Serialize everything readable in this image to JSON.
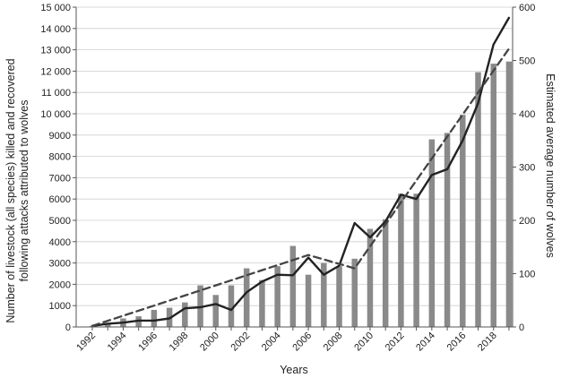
{
  "chart_data": {
    "type": "bar+line",
    "title": "",
    "xlabel": "Years",
    "ylabel_left": "Number of livestock (all species) killed and recovered following attacks attributed to wolves",
    "ylabel_left_lines": [
      "Number of livestock (all species) killed and recovered",
      "following attacks attributed to wolves"
    ],
    "ylabel_right": "Estimated average number of wolves",
    "ylim_left": [
      0,
      15000
    ],
    "ylim_right": [
      0,
      600
    ],
    "x_range": [
      1992,
      2019
    ],
    "yticks_left": [
      0,
      1000,
      2000,
      3000,
      4000,
      5000,
      6000,
      7000,
      8000,
      9000,
      10000,
      11000,
      12000,
      13000,
      14000,
      15000
    ],
    "yticks_left_labels": [
      "0",
      "1000",
      "2000",
      "3000",
      "4000",
      "5000",
      "6000",
      "7000",
      "8000",
      "9000",
      "10 000",
      "11 000",
      "12 000",
      "13 000",
      "14 000",
      "15 000"
    ],
    "yticks_right": [
      0,
      100,
      200,
      300,
      400,
      500,
      600
    ],
    "yticks_right_labels": [
      "0",
      "100",
      "200",
      "300",
      "400",
      "500",
      "600"
    ],
    "xtick_labels": [
      "1992",
      "1994",
      "1996",
      "1998",
      "2000",
      "2002",
      "2004",
      "2006",
      "2008",
      "2010",
      "2012",
      "2014",
      "2016",
      "2018"
    ],
    "grid": "horizontal",
    "legend": "none",
    "series": [
      {
        "kind": "bar",
        "axis": "left",
        "color": "#8a8a8a",
        "x": [
          1992,
          1993,
          1994,
          1995,
          1996,
          1997,
          1998,
          1999,
          2000,
          2001,
          2002,
          2003,
          2004,
          2005,
          2006,
          2007,
          2008,
          2009,
          2010,
          2011,
          2012,
          2013,
          2014,
          2015,
          2016,
          2017,
          2018,
          2019
        ],
        "values": [
          50,
          150,
          400,
          500,
          800,
          900,
          1150,
          1950,
          1500,
          1950,
          2750,
          2200,
          2850,
          3800,
          2450,
          3000,
          2850,
          3200,
          4600,
          5050,
          6250,
          6250,
          8800,
          9100,
          9950,
          11950,
          12350,
          12450
        ]
      },
      {
        "kind": "line",
        "axis": "right",
        "style": "solid",
        "color": "#222222",
        "x": [
          1992,
          1993,
          1994,
          1995,
          1996,
          1997,
          1998,
          1999,
          2000,
          2001,
          2002,
          2003,
          2004,
          2005,
          2006,
          2007,
          2008,
          2009,
          2010,
          2011,
          2012,
          2013,
          2014,
          2015,
          2016,
          2017,
          2018,
          2019
        ],
        "values": [
          2,
          6,
          8,
          12,
          12,
          16,
          35,
          37,
          43,
          32,
          65,
          85,
          98,
          97,
          130,
          98,
          115,
          195,
          168,
          198,
          248,
          240,
          285,
          296,
          350,
          420,
          530,
          580
        ]
      },
      {
        "kind": "line",
        "axis": "right",
        "style": "dashed",
        "color": "#444444",
        "x": [
          1992,
          2006,
          2009,
          2019
        ],
        "values": [
          2,
          135,
          110,
          522
        ]
      }
    ]
  }
}
